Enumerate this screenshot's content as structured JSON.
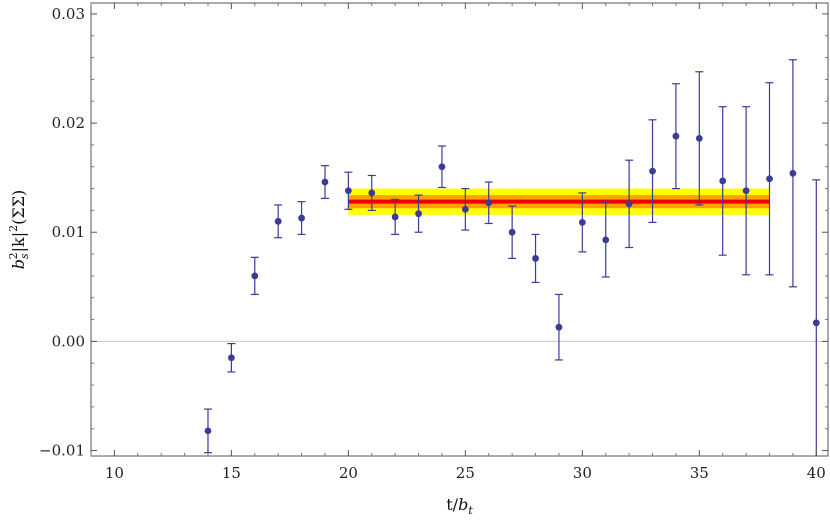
{
  "chart_data": {
    "type": "scatter",
    "xlabel": "t/b_t",
    "ylabel": "b_s^2|k|^2(ΣΣ)",
    "xlim": [
      9,
      40.5
    ],
    "ylim": [
      -0.0105,
      0.031
    ],
    "x_ticks": [
      10,
      15,
      20,
      25,
      30,
      35,
      40
    ],
    "y_ticks": [
      -0.01,
      0.0,
      0.01,
      0.02,
      0.03
    ],
    "x_tick_labels": [
      "10",
      "15",
      "20",
      "25",
      "30",
      "35",
      "40"
    ],
    "y_tick_labels": [
      "−0.01",
      "0.00",
      "0.01",
      "0.02",
      "0.03"
    ],
    "grid": false,
    "zero_line": true,
    "series": [
      {
        "type": "scatter_errorbar",
        "color": "#3b3b98",
        "points": [
          {
            "x": 14,
            "y": -0.0082,
            "err_lo": 0.002,
            "err_hi": 0.002
          },
          {
            "x": 15,
            "y": -0.0015,
            "err_lo": 0.0013,
            "err_hi": 0.0013
          },
          {
            "x": 16,
            "y": 0.006,
            "err_lo": 0.0017,
            "err_hi": 0.0017
          },
          {
            "x": 17,
            "y": 0.011,
            "err_lo": 0.0015,
            "err_hi": 0.0015
          },
          {
            "x": 18,
            "y": 0.0113,
            "err_lo": 0.0015,
            "err_hi": 0.0015
          },
          {
            "x": 19,
            "y": 0.0146,
            "err_lo": 0.0015,
            "err_hi": 0.0015
          },
          {
            "x": 20,
            "y": 0.0138,
            "err_lo": 0.0017,
            "err_hi": 0.0017
          },
          {
            "x": 21,
            "y": 0.0136,
            "err_lo": 0.0016,
            "err_hi": 0.0016
          },
          {
            "x": 22,
            "y": 0.0114,
            "err_lo": 0.0016,
            "err_hi": 0.0016
          },
          {
            "x": 23,
            "y": 0.0117,
            "err_lo": 0.0017,
            "err_hi": 0.0017
          },
          {
            "x": 24,
            "y": 0.016,
            "err_lo": 0.0019,
            "err_hi": 0.0019
          },
          {
            "x": 25,
            "y": 0.0121,
            "err_lo": 0.0019,
            "err_hi": 0.0019
          },
          {
            "x": 26,
            "y": 0.0127,
            "err_lo": 0.0019,
            "err_hi": 0.0019
          },
          {
            "x": 27,
            "y": 0.01,
            "err_lo": 0.0024,
            "err_hi": 0.0024
          },
          {
            "x": 28,
            "y": 0.0076,
            "err_lo": 0.0022,
            "err_hi": 0.0022
          },
          {
            "x": 29,
            "y": 0.0013,
            "err_lo": 0.003,
            "err_hi": 0.003
          },
          {
            "x": 30,
            "y": 0.0109,
            "err_lo": 0.0027,
            "err_hi": 0.0027
          },
          {
            "x": 31,
            "y": 0.0093,
            "err_lo": 0.0034,
            "err_hi": 0.0034
          },
          {
            "x": 32,
            "y": 0.0126,
            "err_lo": 0.004,
            "err_hi": 0.004
          },
          {
            "x": 33,
            "y": 0.0156,
            "err_lo": 0.0047,
            "err_hi": 0.0047
          },
          {
            "x": 34,
            "y": 0.0188,
            "err_lo": 0.0048,
            "err_hi": 0.0048
          },
          {
            "x": 35,
            "y": 0.0186,
            "err_lo": 0.0061,
            "err_hi": 0.0061
          },
          {
            "x": 36,
            "y": 0.0147,
            "err_lo": 0.0068,
            "err_hi": 0.0068
          },
          {
            "x": 37,
            "y": 0.0138,
            "err_lo": 0.0077,
            "err_hi": 0.0077
          },
          {
            "x": 38,
            "y": 0.0149,
            "err_lo": 0.0088,
            "err_hi": 0.0088
          },
          {
            "x": 39,
            "y": 0.0154,
            "err_lo": 0.0104,
            "err_hi": 0.0104
          },
          {
            "x": 40,
            "y": 0.0017,
            "err_lo": 0.0131,
            "err_hi": 0.0131
          }
        ]
      }
    ],
    "fit": {
      "x_range": [
        20,
        38
      ],
      "value": 0.0128,
      "band_outer": [
        0.0116,
        0.014
      ],
      "band_inner": [
        0.0122,
        0.0134
      ],
      "outer_color": "#ffff00",
      "inner_color": "#ff8000",
      "line_color": "#ee0000"
    }
  }
}
